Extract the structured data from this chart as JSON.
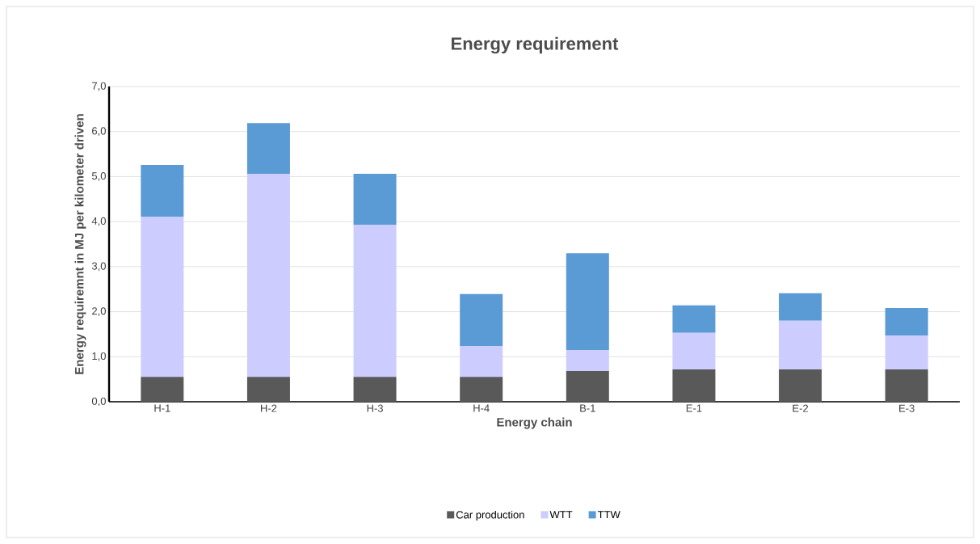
{
  "chart_data": {
    "type": "bar",
    "title": "Energy requirement",
    "xlabel": "Energy chain",
    "ylabel": "Energy requiremnt in MJ per kilometer driven",
    "categories": [
      "H-1",
      "H-2",
      "H-3",
      "H-4",
      "B-1",
      "E-1",
      "E-2",
      "E-3"
    ],
    "stacked": true,
    "series": [
      {
        "name": "Car production",
        "color": "#595959",
        "values": [
          0.55,
          0.55,
          0.55,
          0.55,
          0.68,
          0.72,
          0.72,
          0.72
        ]
      },
      {
        "name": "WTT",
        "color": "#ccccff",
        "values": [
          3.56,
          4.51,
          3.38,
          0.69,
          0.47,
          0.81,
          1.08,
          0.75
        ]
      },
      {
        "name": "TTW",
        "color": "#5b9bd5",
        "values": [
          1.15,
          1.13,
          1.13,
          1.15,
          2.15,
          0.61,
          0.61,
          0.61
        ]
      }
    ],
    "ylim": [
      0,
      7
    ],
    "yticks": [
      {
        "value": 0,
        "label": "0,0"
      },
      {
        "value": 1,
        "label": "1,0"
      },
      {
        "value": 2,
        "label": "2,0"
      },
      {
        "value": 3,
        "label": "3,0"
      },
      {
        "value": 4,
        "label": "4,0"
      },
      {
        "value": 5,
        "label": "5,0"
      },
      {
        "value": 6,
        "label": "6,0"
      },
      {
        "value": 7,
        "label": "7,0"
      }
    ],
    "grid": "y",
    "legend": "bottom"
  }
}
